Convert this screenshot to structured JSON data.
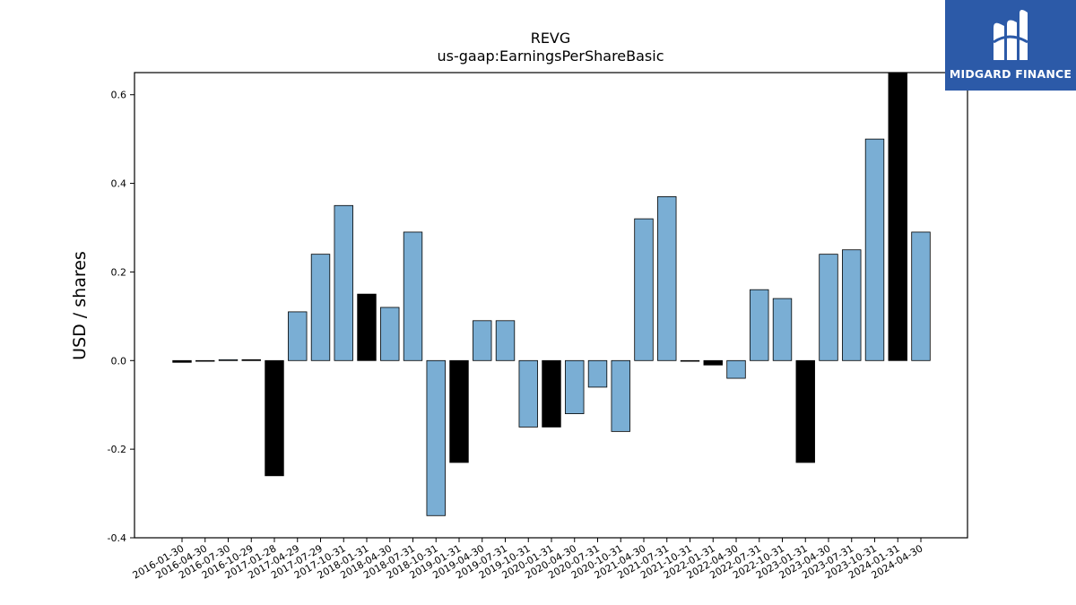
{
  "brand": {
    "name": "MIDGARD FINANCE",
    "color": "#2c5aa8"
  },
  "chart_data": {
    "type": "bar",
    "title": "REVG",
    "subtitle": "us-gaap:EarningsPerShareBasic",
    "ylabel": "USD / shares",
    "xlabel": "",
    "ylim": [
      -0.4,
      0.65
    ],
    "yticks": [
      -0.4,
      -0.2,
      0.0,
      0.2,
      0.4,
      0.6
    ],
    "grid": false,
    "colors": {
      "quarter": "#7aaed4",
      "annual": "#000000"
    },
    "categories": [
      "2016-01-30",
      "2016-04-30",
      "2016-07-30",
      "2016-10-29",
      "2017-01-28",
      "2017-04-29",
      "2017-07-29",
      "2017-10-31",
      "2018-01-31",
      "2018-04-30",
      "2018-07-31",
      "2018-10-31",
      "2019-01-31",
      "2019-04-30",
      "2019-07-31",
      "2019-10-31",
      "2020-01-31",
      "2020-04-30",
      "2020-07-31",
      "2020-10-31",
      "2021-04-30",
      "2021-07-31",
      "2021-10-31",
      "2022-01-31",
      "2022-04-30",
      "2022-07-31",
      "2022-10-31",
      "2023-01-31",
      "2023-04-30",
      "2023-07-31",
      "2023-10-31",
      "2024-01-31",
      "2024-04-30"
    ],
    "values": [
      -0.004,
      0.0,
      0.002,
      0.002,
      -0.26,
      0.11,
      0.24,
      0.35,
      0.15,
      0.12,
      0.29,
      -0.35,
      -0.23,
      0.09,
      0.09,
      -0.15,
      -0.15,
      -0.12,
      -0.06,
      -0.16,
      0.32,
      0.37,
      0.0,
      -0.01,
      -0.04,
      0.16,
      0.14,
      -0.23,
      0.24,
      0.25,
      0.5,
      0.65,
      0.29
    ],
    "annual": [
      true,
      false,
      false,
      true,
      true,
      false,
      false,
      false,
      true,
      false,
      false,
      false,
      true,
      false,
      false,
      false,
      true,
      false,
      false,
      false,
      false,
      false,
      false,
      true,
      false,
      false,
      false,
      true,
      false,
      false,
      false,
      true,
      false
    ]
  }
}
